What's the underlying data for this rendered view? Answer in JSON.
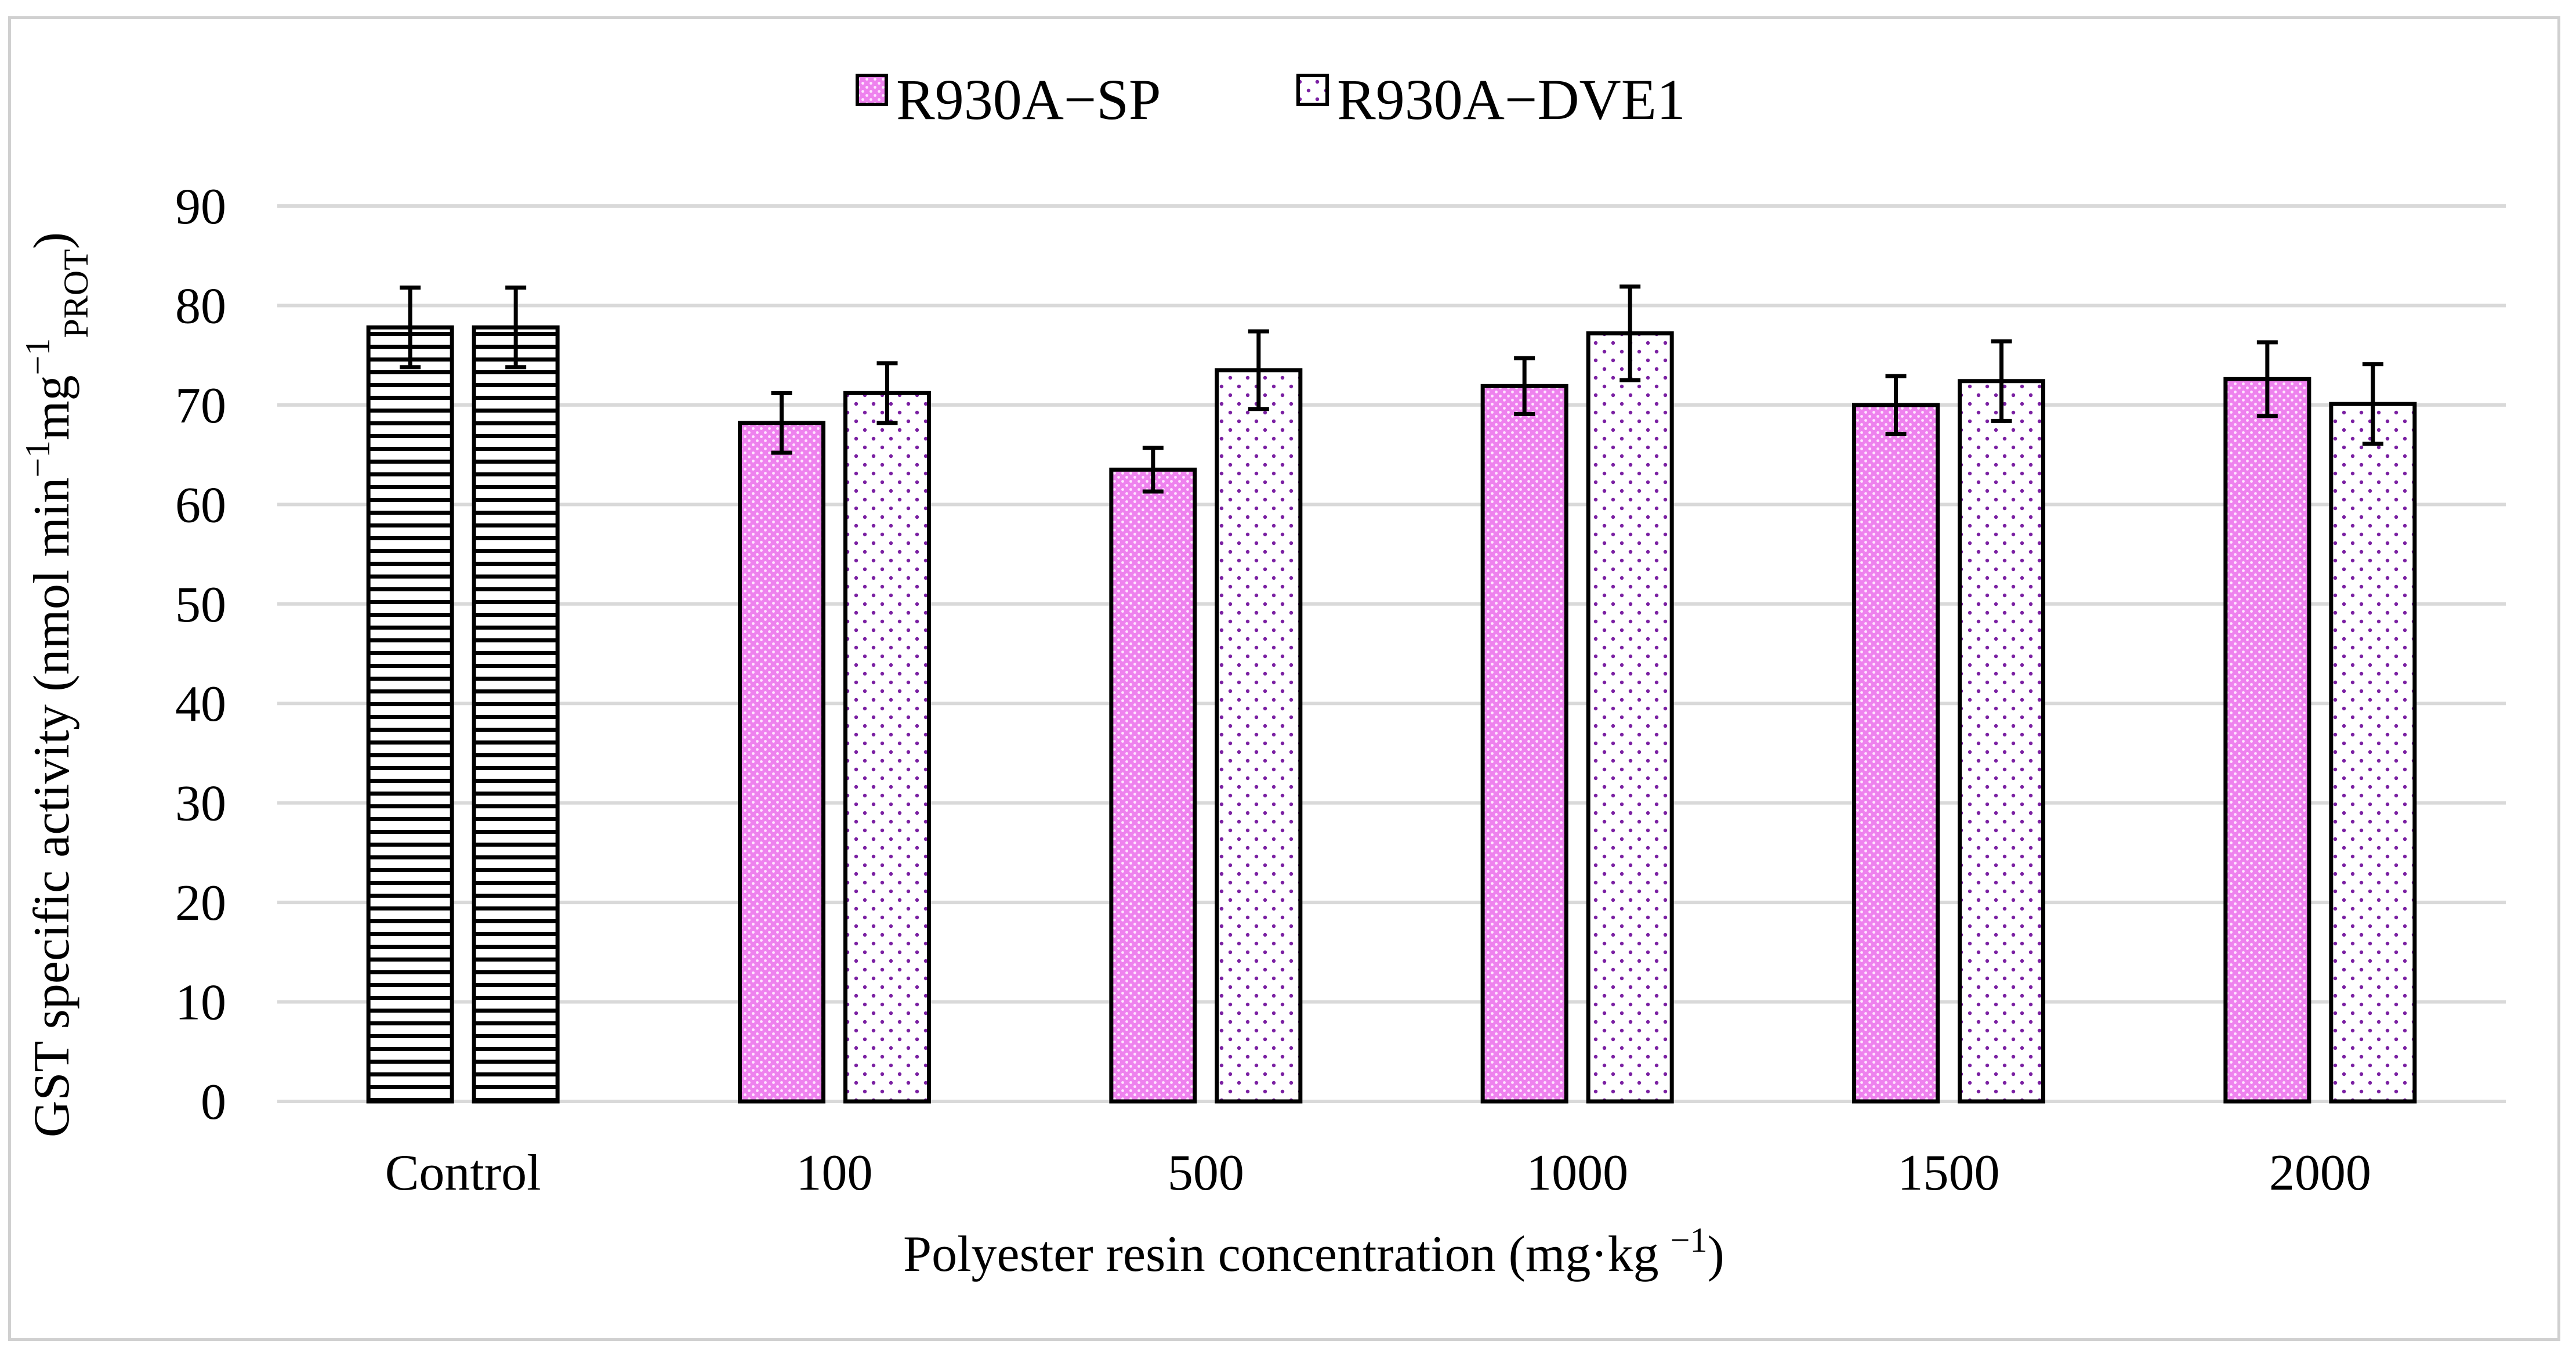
{
  "chart_data": {
    "type": "bar",
    "title": "",
    "xlabel": "Polyester resin concentration (mg·kg",
    "xlabel_sup": "−1",
    "xlabel_tail": ")",
    "ylabel_parts": {
      "main": "GST specific activity (nmol min",
      "sup1": "−1",
      "mid": "mg",
      "sup2": "−1",
      "sub": "PROT",
      "tail": ")"
    },
    "ylim": [
      0,
      90
    ],
    "yticks": [
      0,
      10,
      20,
      30,
      40,
      50,
      60,
      70,
      80,
      90
    ],
    "grid": true,
    "legend_position": "top-center",
    "categories": [
      "Control",
      "100",
      "500",
      "1000",
      "1500",
      "2000"
    ],
    "series": [
      {
        "name": "R930A−SP",
        "values": [
          77.8,
          68.2,
          63.5,
          71.9,
          70.0,
          72.6
        ],
        "errors": [
          4.0,
          3.0,
          2.2,
          2.8,
          2.9,
          3.7
        ]
      },
      {
        "name": "R930A−DVE1",
        "values": [
          77.8,
          71.2,
          73.5,
          77.2,
          72.4,
          70.1
        ],
        "errors": [
          4.0,
          3.0,
          3.9,
          4.7,
          4.0,
          4.0
        ]
      }
    ],
    "colors": {
      "sp_fill": "#ee82ee",
      "sp_dot": "#ffe6ff",
      "dve_fill": "#ffffff",
      "dve_dot": "#7a1fa2",
      "control_line": "#000000"
    }
  }
}
